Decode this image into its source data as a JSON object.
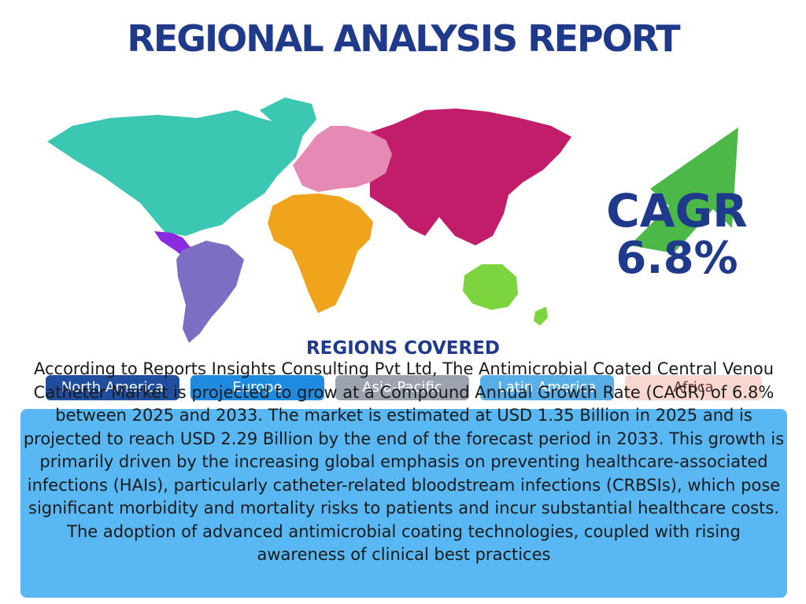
{
  "header": {
    "title": "REGIONAL ANALYSIS REPORT"
  },
  "cagr": {
    "label": "CAGR",
    "value": "6.8%"
  },
  "regions": {
    "heading": "REGIONS COVERED",
    "items": [
      {
        "label": "North America",
        "color": "#1f4e9e"
      },
      {
        "label": "Europe",
        "color": "#1f8be0"
      },
      {
        "label": "Asia-Pacific",
        "color": "#9ca3af"
      },
      {
        "label": "Latin America",
        "color": "#5aaee8"
      },
      {
        "label": "Africa",
        "color": "#f8d7d0"
      }
    ]
  },
  "map_colors": {
    "north_america": "#3cc7b3",
    "central_america": "#8a2be2",
    "south_america": "#7b6fc4",
    "europe": "#e58ab5",
    "asia": "#c21d6a",
    "africa": "#f0a41c",
    "oceania": "#7cd43e",
    "arrow": "#4cb848"
  },
  "summary": {
    "text": "According to Reports Insights Consulting Pvt Ltd, The Antimicrobial Coated Central Venou Catheter Market is projected to grow at a Compound Annual Growth Rate (CAGR) of 6.8% between 2025 and 2033. The market is estimated at USD 1.35 Billion in 2025 and is projected to reach USD 2.29 Billion by the end of the forecast period in 2033. This growth is primarily driven by the increasing global emphasis on preventing healthcare-associated infections (HAIs), particularly catheter-related bloodstream infections (CRBSIs), which pose significant morbidity and mortality risks to patients and incur substantial healthcare costs. The adoption of advanced antimicrobial coating technologies, coupled with rising awareness of clinical best practices"
  }
}
